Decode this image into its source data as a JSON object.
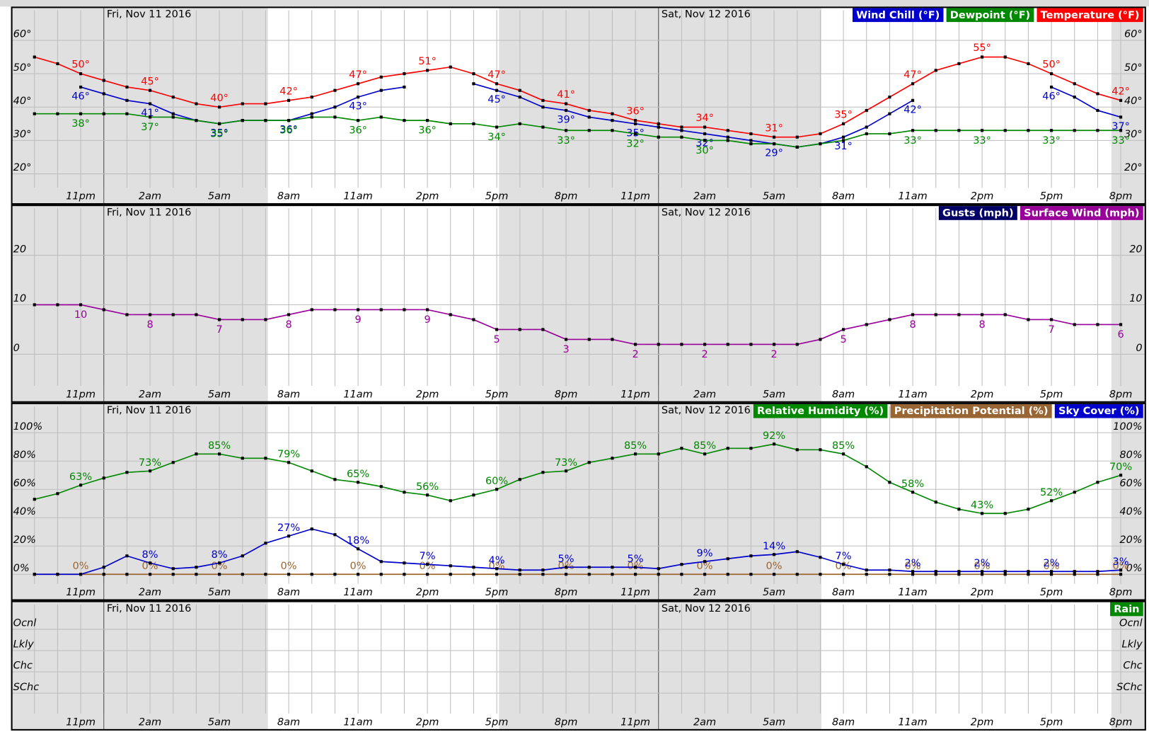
{
  "chart_data": [
    {
      "type": "line",
      "categories": [
        null,
        null,
        "11pm",
        null,
        null,
        "2am",
        null,
        null,
        "5am",
        null,
        null,
        "8am",
        null,
        null,
        "11am",
        null,
        null,
        "2pm",
        null,
        null,
        "5pm",
        null,
        null,
        "8pm",
        null,
        null,
        "11pm",
        null,
        null,
        "2am",
        null,
        null,
        "5am",
        null,
        null,
        "8am",
        null,
        null,
        "11am",
        null,
        null,
        "2pm",
        null,
        null,
        "5pm",
        null,
        null,
        "8pm"
      ],
      "day_labels": [
        "Fri, Nov 11 2016",
        "Sat, Nov 12 2016"
      ],
      "ylim": [
        20,
        60
      ],
      "yticks": [
        {
          "value": 20,
          "label": "20°"
        },
        {
          "value": 30,
          "label": "30°"
        },
        {
          "value": 40,
          "label": "40°"
        },
        {
          "value": 50,
          "label": "50°"
        },
        {
          "value": 60,
          "label": "60°"
        }
      ],
      "grid": true,
      "series": [
        {
          "name": "Wind Chill (°F)",
          "color": "#0000cc",
          "values": [
            null,
            null,
            46,
            44,
            42,
            41,
            38,
            36,
            35,
            36,
            36,
            36,
            38,
            40,
            43,
            45,
            46,
            null,
            null,
            47,
            45,
            43,
            40,
            39,
            37,
            36,
            35,
            34,
            33,
            32,
            31,
            30,
            29,
            28,
            29,
            31,
            34,
            38,
            42,
            null,
            null,
            null,
            null,
            null,
            46,
            43,
            39,
            37
          ],
          "value_labels": [
            null,
            null,
            "46°",
            null,
            null,
            "41°",
            null,
            null,
            "35°",
            null,
            null,
            "36°",
            null,
            null,
            "43°",
            null,
            null,
            null,
            null,
            null,
            "45°",
            null,
            null,
            "39°",
            null,
            null,
            "35°",
            null,
            null,
            "32°",
            null,
            null,
            "29°",
            null,
            null,
            "31°",
            null,
            null,
            "42°",
            null,
            null,
            null,
            null,
            null,
            "46°",
            null,
            null,
            "37°"
          ]
        },
        {
          "name": "Dewpoint (°F)",
          "color": "#008800",
          "values": [
            38,
            38,
            38,
            38,
            38,
            37,
            37,
            36,
            35,
            36,
            36,
            36,
            37,
            37,
            36,
            37,
            36,
            36,
            35,
            35,
            34,
            35,
            34,
            33,
            33,
            33,
            32,
            31,
            31,
            30,
            30,
            29,
            29,
            28,
            29,
            30,
            32,
            32,
            33,
            33,
            33,
            33,
            33,
            33,
            33,
            33,
            33,
            33
          ],
          "value_labels": [
            null,
            null,
            "38°",
            null,
            null,
            "37°",
            null,
            null,
            "35°",
            null,
            null,
            "36°",
            null,
            null,
            "36°",
            null,
            null,
            "36°",
            null,
            null,
            "34°",
            null,
            null,
            "33°",
            null,
            null,
            "32°",
            null,
            null,
            "30°",
            null,
            null,
            null,
            null,
            null,
            null,
            null,
            null,
            "33°",
            null,
            null,
            "33°",
            null,
            null,
            "33°",
            null,
            null,
            "33°"
          ]
        },
        {
          "name": "Temperature (°F)",
          "color": "#ff0000",
          "values": [
            55,
            53,
            50,
            48,
            46,
            45,
            43,
            41,
            40,
            41,
            41,
            42,
            43,
            45,
            47,
            49,
            50,
            51,
            52,
            50,
            47,
            45,
            42,
            41,
            39,
            38,
            36,
            35,
            34,
            34,
            33,
            32,
            31,
            31,
            32,
            35,
            39,
            43,
            47,
            51,
            53,
            55,
            55,
            53,
            50,
            47,
            44,
            42
          ],
          "value_labels": [
            null,
            null,
            "50°",
            null,
            null,
            "45°",
            null,
            null,
            "40°",
            null,
            null,
            "42°",
            null,
            null,
            "47°",
            null,
            null,
            "51°",
            null,
            null,
            "47°",
            null,
            null,
            "41°",
            null,
            null,
            "36°",
            null,
            null,
            "34°",
            null,
            null,
            "31°",
            null,
            null,
            "35°",
            null,
            null,
            "47°",
            null,
            null,
            "55°",
            null,
            null,
            "50°",
            null,
            null,
            "42°"
          ]
        }
      ]
    },
    {
      "type": "line",
      "categories": [
        null,
        null,
        "11pm",
        null,
        null,
        "2am",
        null,
        null,
        "5am",
        null,
        null,
        "8am",
        null,
        null,
        "11am",
        null,
        null,
        "2pm",
        null,
        null,
        "5pm",
        null,
        null,
        "8pm",
        null,
        null,
        "11pm",
        null,
        null,
        "2am",
        null,
        null,
        "5am",
        null,
        null,
        "8am",
        null,
        null,
        "11am",
        null,
        null,
        "2pm",
        null,
        null,
        "5pm",
        null,
        null,
        "8pm"
      ],
      "day_labels": [
        "Fri, Nov 11 2016",
        "Sat, Nov 12 2016"
      ],
      "ylim": [
        0,
        20
      ],
      "yticks": [
        0,
        10,
        20
      ],
      "grid": true,
      "series": [
        {
          "name": "Gusts (mph)",
          "color": "#000066",
          "values": [
            null,
            null,
            null,
            null,
            null,
            null,
            null,
            null,
            null,
            null,
            null,
            null,
            null,
            null,
            null,
            null,
            null,
            null,
            null,
            null,
            null,
            null,
            null,
            null,
            null,
            null,
            null,
            null,
            null,
            null,
            null,
            null,
            null,
            null,
            null,
            null,
            null,
            null,
            null,
            null,
            null,
            null,
            null,
            null,
            null,
            null,
            null,
            null
          ]
        },
        {
          "name": "Surface Wind (mph)",
          "color": "#990099",
          "values": [
            10,
            10,
            10,
            9,
            8,
            8,
            8,
            8,
            7,
            7,
            7,
            8,
            9,
            9,
            9,
            9,
            9,
            9,
            8,
            7,
            5,
            5,
            5,
            3,
            3,
            3,
            2,
            2,
            2,
            2,
            2,
            2,
            2,
            2,
            3,
            5,
            6,
            7,
            8,
            8,
            8,
            8,
            8,
            7,
            7,
            6,
            6,
            6
          ]
        }
      ]
    },
    {
      "type": "line",
      "categories": [
        null,
        null,
        "11pm",
        null,
        null,
        "2am",
        null,
        null,
        "5am",
        null,
        null,
        "8am",
        null,
        null,
        "11am",
        null,
        null,
        "2pm",
        null,
        null,
        "5pm",
        null,
        null,
        "8pm",
        null,
        null,
        "11pm",
        null,
        null,
        "2am",
        null,
        null,
        "5am",
        null,
        null,
        "8am",
        null,
        null,
        "11am",
        null,
        null,
        "2pm",
        null,
        null,
        "5pm",
        null,
        null,
        "8pm"
      ],
      "day_labels": [
        "Fri, Nov 11 2016",
        "Sat, Nov 12 2016"
      ],
      "ylim": [
        0,
        100
      ],
      "yticks": [
        {
          "value": 0,
          "label": "0%"
        },
        {
          "value": 20,
          "label": "20%"
        },
        {
          "value": 40,
          "label": "40%"
        },
        {
          "value": 60,
          "label": "60%"
        },
        {
          "value": 80,
          "label": "80%"
        },
        {
          "value": 100,
          "label": "100%"
        }
      ],
      "grid": true,
      "series": [
        {
          "name": "Relative Humidity (%)",
          "color": "#008800",
          "values": [
            53,
            57,
            63,
            68,
            72,
            73,
            79,
            85,
            85,
            82,
            82,
            79,
            73,
            67,
            65,
            62,
            58,
            56,
            52,
            56,
            60,
            67,
            72,
            73,
            79,
            82,
            85,
            85,
            89,
            85,
            89,
            89,
            92,
            88,
            88,
            85,
            76,
            65,
            58,
            51,
            46,
            43,
            43,
            46,
            52,
            58,
            65,
            70
          ],
          "value_labels": [
            null,
            null,
            "63%",
            null,
            null,
            "73%",
            null,
            null,
            "85%",
            null,
            null,
            "79%",
            null,
            null,
            "65%",
            null,
            null,
            "56%",
            null,
            null,
            "60%",
            null,
            null,
            "73%",
            null,
            null,
            "85%",
            null,
            null,
            "85%",
            null,
            null,
            "92%",
            null,
            null,
            "85%",
            null,
            null,
            "58%",
            null,
            null,
            "43%",
            null,
            null,
            "52%",
            null,
            null,
            "70%"
          ]
        },
        {
          "name": "Precipitation Potential (%)",
          "color": "#996633",
          "values": [
            0,
            0,
            0,
            0,
            0,
            0,
            0,
            0,
            0,
            0,
            0,
            0,
            0,
            0,
            0,
            0,
            0,
            0,
            0,
            0,
            0,
            0,
            0,
            0,
            0,
            0,
            0,
            0,
            0,
            0,
            0,
            0,
            0,
            0,
            0,
            0,
            0,
            0,
            0,
            0,
            0,
            0,
            0,
            0,
            0,
            0,
            0,
            0
          ],
          "value_labels": [
            null,
            null,
            "0%",
            null,
            null,
            "0%",
            null,
            null,
            "0%",
            null,
            null,
            "0%",
            null,
            null,
            "0%",
            null,
            null,
            "0%",
            null,
            null,
            "0%",
            null,
            null,
            "0%",
            null,
            null,
            "0%",
            null,
            null,
            "0%",
            null,
            null,
            "0%",
            null,
            null,
            "0%",
            null,
            null,
            "0%",
            null,
            null,
            "0%",
            null,
            null,
            "0%",
            null,
            null,
            "0%"
          ]
        },
        {
          "name": "Sky Cover (%)",
          "color": "#0000cc",
          "values": [
            0,
            0,
            0,
            5,
            13,
            8,
            4,
            5,
            8,
            13,
            22,
            27,
            32,
            28,
            18,
            9,
            8,
            7,
            6,
            5,
            4,
            3,
            3,
            5,
            5,
            5,
            5,
            4,
            7,
            9,
            11,
            13,
            14,
            16,
            12,
            7,
            3,
            3,
            2,
            2,
            2,
            2,
            2,
            2,
            2,
            2,
            2,
            3
          ],
          "value_labels": [
            null,
            null,
            null,
            null,
            null,
            "8%",
            null,
            null,
            "8%",
            null,
            null,
            "27%",
            null,
            null,
            "18%",
            null,
            null,
            "7%",
            null,
            null,
            "4%",
            null,
            null,
            "5%",
            null,
            null,
            "5%",
            null,
            null,
            "9%",
            null,
            null,
            "14%",
            null,
            null,
            "7%",
            null,
            null,
            "2%",
            null,
            null,
            "2%",
            null,
            null,
            "2%",
            null,
            null,
            "3%"
          ]
        }
      ]
    },
    {
      "type": "line",
      "categories": [
        null,
        null,
        "11pm",
        null,
        null,
        "2am",
        null,
        null,
        "5am",
        null,
        null,
        "8am",
        null,
        null,
        "11am",
        null,
        null,
        "2pm",
        null,
        null,
        "5pm",
        null,
        null,
        "8pm",
        null,
        null,
        "11pm",
        null,
        null,
        "2am",
        null,
        null,
        "5am",
        null,
        null,
        "8am",
        null,
        null,
        "11am",
        null,
        null,
        "2pm",
        null,
        null,
        "5pm",
        null,
        null,
        "8pm"
      ],
      "day_labels": [
        "Fri, Nov 11 2016",
        "Sat, Nov 12 2016"
      ],
      "y_categories": [
        "SChc",
        "Chc",
        "Lkly",
        "Ocnl"
      ],
      "grid": true,
      "series": [
        {
          "name": "Rain",
          "color": "#008800",
          "values": [
            null,
            null,
            null,
            null,
            null,
            null,
            null,
            null,
            null,
            null,
            null,
            null,
            null,
            null,
            null,
            null,
            null,
            null,
            null,
            null,
            null,
            null,
            null,
            null,
            null,
            null,
            null,
            null,
            null,
            null,
            null,
            null,
            null,
            null,
            null,
            null,
            null,
            null,
            null,
            null,
            null,
            null,
            null,
            null,
            null,
            null,
            null,
            null
          ]
        }
      ]
    }
  ]
}
